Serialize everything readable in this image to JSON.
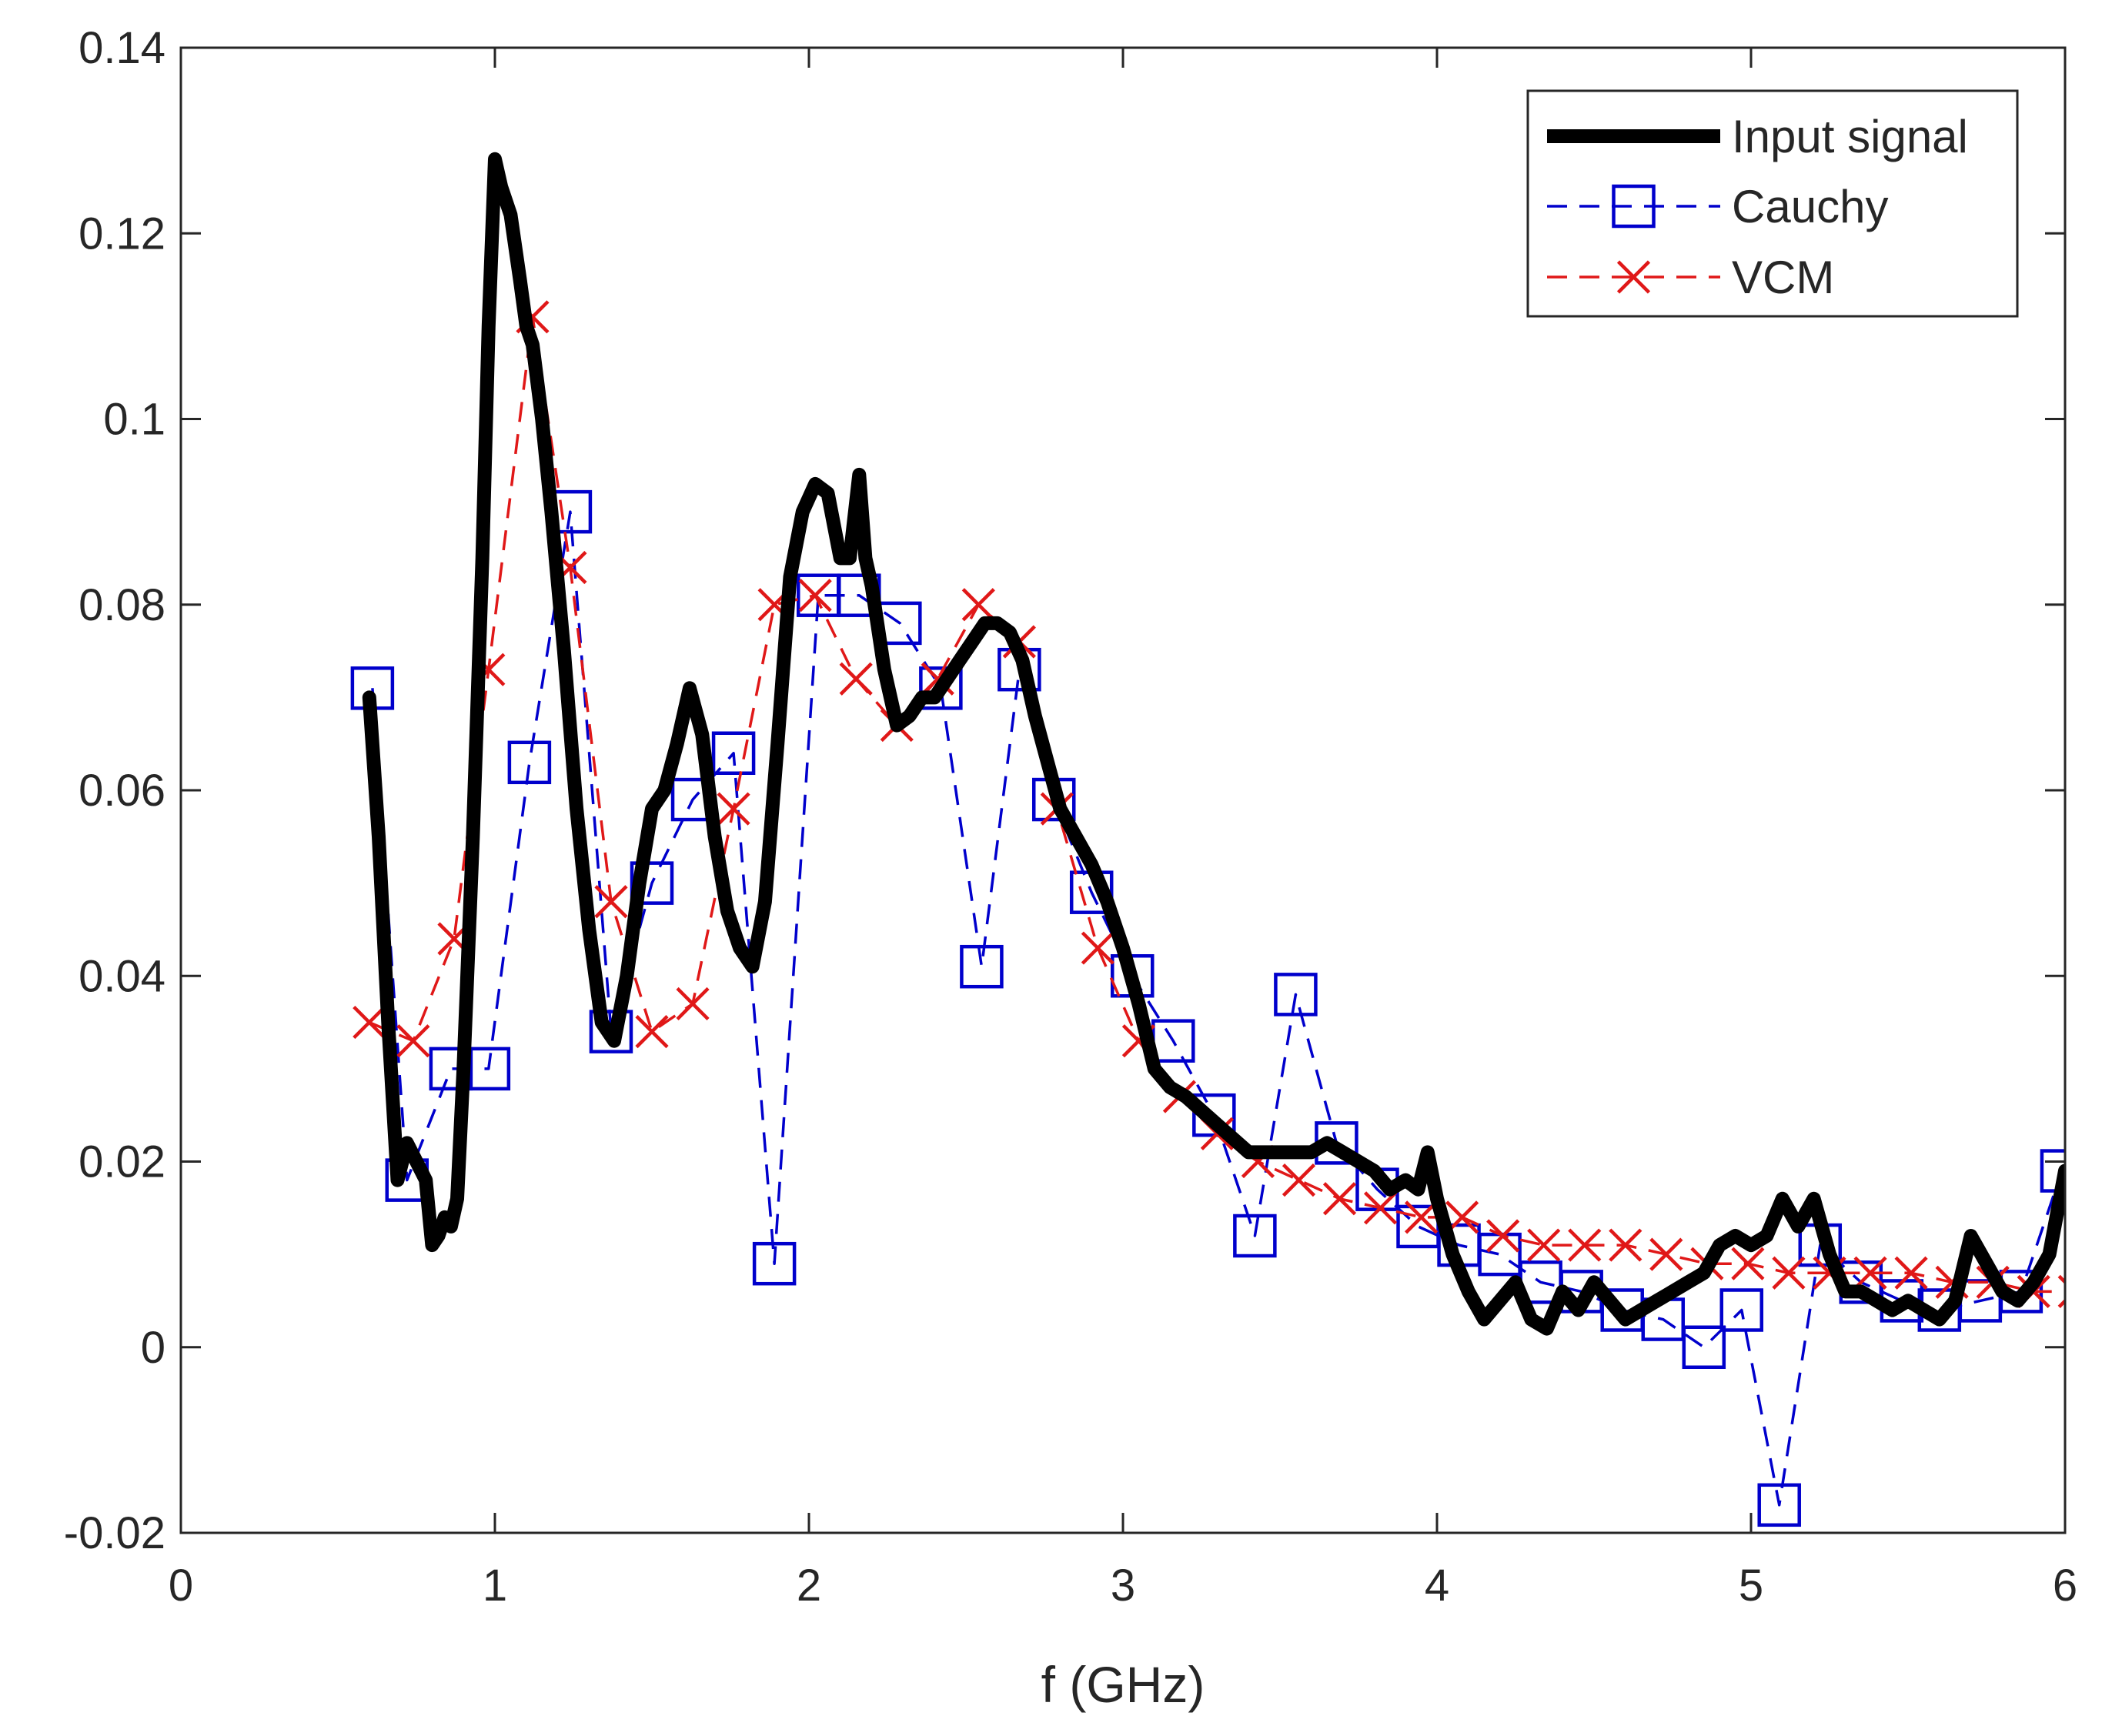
{
  "chart_data": {
    "type": "line",
    "title": "",
    "xlabel": "f (GHz)",
    "ylabel": "",
    "xlim": [
      0,
      6
    ],
    "ylim": [
      -0.02,
      0.14
    ],
    "xticks": [
      0,
      1,
      2,
      3,
      4,
      5,
      6
    ],
    "xtick_labels": [
      "0",
      "1",
      "2",
      "3",
      "4",
      "5",
      "6"
    ],
    "yticks": [
      -0.02,
      0,
      0.02,
      0.04,
      0.06,
      0.08,
      0.1,
      0.12,
      0.14
    ],
    "ytick_labels": [
      "-0.02",
      "0",
      "0.02",
      "0.04",
      "0.06",
      "0.08",
      "0.1",
      "0.12",
      "0.14"
    ],
    "grid": false,
    "legend_position": "top-right",
    "series": [
      {
        "name": "Input signal",
        "color": "#000000",
        "style": "solid",
        "marker": "none",
        "x": [
          0.6,
          0.63,
          0.66,
          0.69,
          0.72,
          0.75,
          0.78,
          0.8,
          0.82,
          0.84,
          0.86,
          0.88,
          0.9,
          0.93,
          0.96,
          0.98,
          1.0,
          1.02,
          1.05,
          1.08,
          1.1,
          1.12,
          1.15,
          1.18,
          1.22,
          1.26,
          1.3,
          1.34,
          1.38,
          1.42,
          1.46,
          1.5,
          1.54,
          1.58,
          1.62,
          1.66,
          1.7,
          1.74,
          1.78,
          1.82,
          1.86,
          1.9,
          1.94,
          1.98,
          2.02,
          2.06,
          2.1,
          2.13,
          2.16,
          2.18,
          2.2,
          2.24,
          2.28,
          2.32,
          2.36,
          2.4,
          2.44,
          2.48,
          2.52,
          2.56,
          2.6,
          2.64,
          2.68,
          2.72,
          2.76,
          2.8,
          2.85,
          2.9,
          2.95,
          3.0,
          3.05,
          3.1,
          3.15,
          3.2,
          3.3,
          3.4,
          3.5,
          3.6,
          3.65,
          3.7,
          3.75,
          3.8,
          3.85,
          3.9,
          3.94,
          3.97,
          4.0,
          4.05,
          4.1,
          4.15,
          4.2,
          4.25,
          4.3,
          4.35,
          4.4,
          4.45,
          4.5,
          4.55,
          4.6,
          4.65,
          4.7,
          4.75,
          4.8,
          4.85,
          4.9,
          4.95,
          5.0,
          5.05,
          5.1,
          5.15,
          5.2,
          5.25,
          5.3,
          5.35,
          5.4,
          5.45,
          5.5,
          5.55,
          5.6,
          5.65,
          5.7,
          5.75,
          5.8,
          5.85,
          5.9,
          5.95,
          6.0
        ],
        "y": [
          0.07,
          0.055,
          0.035,
          0.018,
          0.022,
          0.02,
          0.018,
          0.011,
          0.012,
          0.014,
          0.013,
          0.016,
          0.03,
          0.055,
          0.085,
          0.11,
          0.128,
          0.125,
          0.122,
          0.115,
          0.11,
          0.108,
          0.1,
          0.09,
          0.075,
          0.058,
          0.045,
          0.035,
          0.033,
          0.04,
          0.05,
          0.058,
          0.06,
          0.065,
          0.071,
          0.066,
          0.055,
          0.047,
          0.043,
          0.041,
          0.048,
          0.065,
          0.083,
          0.09,
          0.093,
          0.092,
          0.085,
          0.085,
          0.094,
          0.085,
          0.082,
          0.073,
          0.067,
          0.068,
          0.07,
          0.07,
          0.072,
          0.074,
          0.076,
          0.078,
          0.078,
          0.077,
          0.074,
          0.068,
          0.063,
          0.058,
          0.055,
          0.052,
          0.048,
          0.043,
          0.037,
          0.03,
          0.028,
          0.027,
          0.024,
          0.021,
          0.021,
          0.021,
          0.022,
          0.021,
          0.02,
          0.019,
          0.017,
          0.018,
          0.017,
          0.021,
          0.016,
          0.01,
          0.006,
          0.003,
          0.005,
          0.007,
          0.003,
          0.002,
          0.006,
          0.004,
          0.007,
          0.005,
          0.003,
          0.004,
          0.005,
          0.006,
          0.007,
          0.008,
          0.011,
          0.012,
          0.011,
          0.012,
          0.016,
          0.013,
          0.016,
          0.01,
          0.006,
          0.006,
          0.005,
          0.004,
          0.005,
          0.004,
          0.003,
          0.005,
          0.012,
          0.009,
          0.006,
          0.005,
          0.007,
          0.01,
          0.019
        ]
      },
      {
        "name": "Cauchy",
        "color": "#0000cc",
        "style": "dashed",
        "marker": "square",
        "x": [
          0.61,
          0.72,
          0.86,
          0.98,
          1.11,
          1.24,
          1.37,
          1.5,
          1.63,
          1.76,
          1.89,
          2.03,
          2.16,
          2.29,
          2.42,
          2.55,
          2.67,
          2.78,
          2.9,
          3.03,
          3.16,
          3.29,
          3.42,
          3.55,
          3.68,
          3.81,
          3.94,
          4.07,
          4.2,
          4.33,
          4.46,
          4.59,
          4.72,
          4.85,
          4.97,
          5.09,
          5.22,
          5.35,
          5.48,
          5.6,
          5.73,
          5.86,
          5.99
        ],
        "y": [
          0.071,
          0.018,
          0.03,
          0.03,
          0.063,
          0.09,
          0.034,
          0.05,
          0.059,
          0.064,
          0.009,
          0.081,
          0.081,
          0.078,
          0.071,
          0.041,
          0.073,
          0.059,
          0.049,
          0.04,
          0.033,
          0.025,
          0.012,
          0.038,
          0.022,
          0.017,
          0.013,
          0.011,
          0.01,
          0.007,
          0.006,
          0.004,
          0.003,
          0.0,
          0.004,
          -0.017,
          0.011,
          0.007,
          0.005,
          0.004,
          0.005,
          0.006,
          0.019
        ]
      },
      {
        "name": "VCM",
        "color": "#e01818",
        "style": "dashed",
        "marker": "x",
        "x": [
          0.6,
          0.74,
          0.87,
          0.98,
          1.12,
          1.24,
          1.37,
          1.5,
          1.63,
          1.76,
          1.89,
          2.02,
          2.15,
          2.28,
          2.41,
          2.54,
          2.67,
          2.79,
          2.92,
          3.05,
          3.18,
          3.3,
          3.43,
          3.56,
          3.69,
          3.82,
          3.95,
          4.08,
          4.21,
          4.34,
          4.47,
          4.6,
          4.73,
          4.86,
          4.99,
          5.12,
          5.25,
          5.38,
          5.51,
          5.64,
          5.77,
          5.9,
          6.03
        ],
        "y": [
          0.035,
          0.033,
          0.044,
          0.073,
          0.111,
          0.084,
          0.048,
          0.034,
          0.037,
          0.058,
          0.08,
          0.081,
          0.072,
          0.067,
          0.072,
          0.08,
          0.076,
          0.058,
          0.043,
          0.033,
          0.027,
          0.023,
          0.02,
          0.018,
          0.016,
          0.015,
          0.014,
          0.014,
          0.012,
          0.011,
          0.011,
          0.011,
          0.01,
          0.009,
          0.009,
          0.008,
          0.008,
          0.008,
          0.008,
          0.007,
          0.007,
          0.006,
          0.006
        ]
      }
    ]
  }
}
